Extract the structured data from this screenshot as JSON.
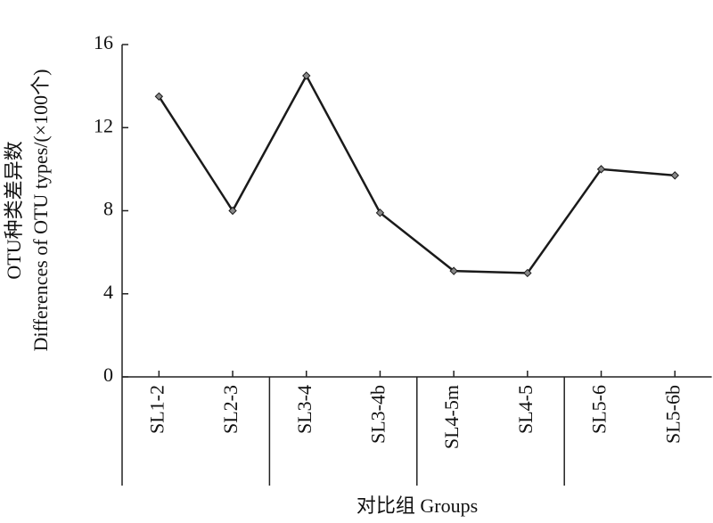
{
  "chart_data": {
    "type": "line",
    "y_label_lines": [
      "OTU种类差异数",
      "Differences of OTU types/(×100个)"
    ],
    "x_label": "对比组 Groups",
    "categories": [
      "SL1-2",
      "SL2-3",
      "SL3-4",
      "SL3-4b",
      "SL4-5m",
      "SL4-5",
      "SL5-6",
      "SL5-6b"
    ],
    "series": [
      {
        "color": "#1a1a1a",
        "values": [
          13.5,
          8.0,
          14.5,
          7.9,
          5.1,
          5.0,
          10.0,
          9.7
        ]
      }
    ],
    "ylim": [
      0,
      16
    ],
    "yticks": [
      0,
      4,
      8,
      12,
      16
    ],
    "grid": false
  }
}
